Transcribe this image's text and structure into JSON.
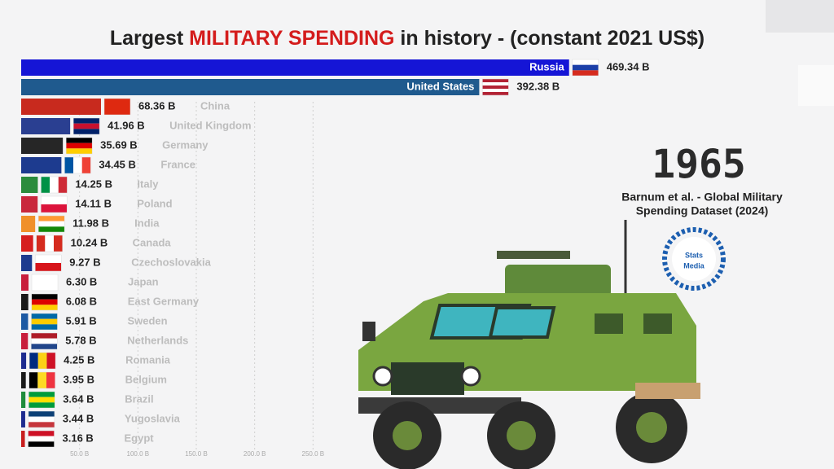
{
  "chart_data": {
    "type": "bar",
    "orientation": "horizontal",
    "title": [
      "Largest ",
      "MILITARY SPENDING",
      " in history  - (constant 2021 US$)"
    ],
    "year": "1965",
    "source": [
      "Barnum et al. - Global Military",
      "Spending Dataset (2024)"
    ],
    "logo": [
      "Stats",
      "Media"
    ],
    "categories": [
      "Russia",
      "United States",
      "China",
      "United Kingdom",
      "Germany",
      "France",
      "Italy",
      "Poland",
      "India",
      "Canada",
      "Czechoslovakia",
      "Japan",
      "East Germany",
      "Sweden",
      "Netherlands",
      "Romania",
      "Belgium",
      "Brazil",
      "Yugoslavia",
      "Egypt"
    ],
    "values": [
      469.34,
      392.38,
      68.36,
      41.96,
      35.69,
      34.45,
      14.25,
      14.11,
      11.98,
      10.24,
      9.27,
      6.3,
      6.08,
      5.91,
      5.78,
      4.25,
      3.95,
      3.64,
      3.44,
      3.16
    ],
    "value_labels": [
      "469.34 B",
      "392.38 B",
      "68.36 B",
      "41.96 B",
      "35.69 B",
      "34.45 B",
      "14.25 B",
      "14.11 B",
      "11.98 B",
      "10.24 B",
      "9.27 B",
      "6.30 B",
      "6.08 B",
      "5.91 B",
      "5.78 B",
      "4.25 B",
      "3.95 B",
      "3.64 B",
      "3.44 B",
      "3.16 B"
    ],
    "colors": [
      "#1515d6",
      "#1f5a8e",
      "#c82a1e",
      "#2a3f91",
      "#262626",
      "#1d3b8f",
      "#2b8c3c",
      "#c9283c",
      "#f0902a",
      "#d61e1e",
      "#1d3b8f",
      "#c81e3c",
      "#1a1a1a",
      "#1d5aa3",
      "#c81e3c",
      "#1d2b8f",
      "#1a1a1a",
      "#1f8c3c",
      "#1d2b8f",
      "#c81e1e"
    ],
    "xlim": [
      0,
      600
    ],
    "xticks": [
      {
        "value": 50,
        "label": "50.0 B"
      },
      {
        "value": 100,
        "label": "100.0 B"
      },
      {
        "value": 150,
        "label": "150.0 B"
      },
      {
        "value": 200,
        "label": "200.0 B"
      },
      {
        "value": 250,
        "label": "250.0 B"
      }
    ],
    "grid": true
  }
}
